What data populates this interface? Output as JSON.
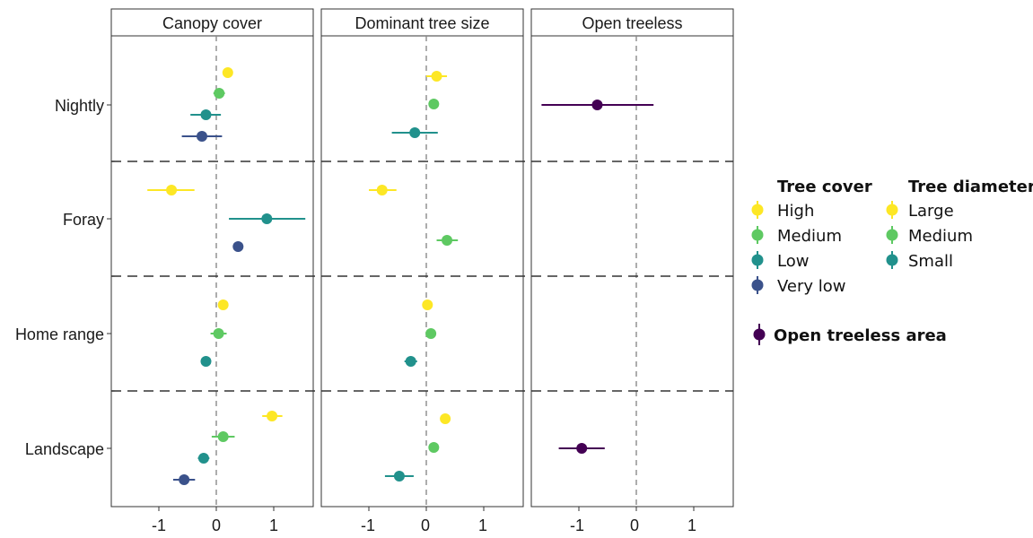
{
  "chart_data": {
    "type": "scatter",
    "panels": [
      "Canopy cover",
      "Dominant tree size",
      "Open treeless"
    ],
    "rows": [
      "Nightly",
      "Foray",
      "Home range",
      "Landscape"
    ],
    "x_ticks": [
      "-1",
      "0",
      "1"
    ],
    "xlim": [
      -1.8,
      1.7
    ],
    "reference_line_x": 0,
    "colors": {
      "high": "#fde725",
      "medium": "#5ec962",
      "low": "#21918c",
      "very_low": "#3b528b",
      "open": "#440154"
    },
    "legend": {
      "tree_cover_title": "Tree cover",
      "tree_cover_items": [
        "High",
        "Medium",
        "Low",
        "Very low"
      ],
      "tree_diameter_title": "Tree diameter",
      "tree_diameter_items": [
        "Large",
        "Medium",
        "Small"
      ],
      "open_label": "Open treeless area"
    },
    "series": [
      {
        "panel": "Canopy cover",
        "row": "Nightly",
        "level": "high",
        "estimate": 0.2,
        "lower": 0.15,
        "upper": 0.25
      },
      {
        "panel": "Canopy cover",
        "row": "Nightly",
        "level": "medium",
        "estimate": 0.05,
        "lower": -0.05,
        "upper": 0.15
      },
      {
        "panel": "Canopy cover",
        "row": "Nightly",
        "level": "low",
        "estimate": -0.18,
        "lower": -0.45,
        "upper": 0.08
      },
      {
        "panel": "Canopy cover",
        "row": "Nightly",
        "level": "very_low",
        "estimate": -0.25,
        "lower": -0.6,
        "upper": 0.1
      },
      {
        "panel": "Canopy cover",
        "row": "Foray",
        "level": "high",
        "estimate": -0.78,
        "lower": -1.2,
        "upper": -0.38
      },
      {
        "panel": "Canopy cover",
        "row": "Foray",
        "level": "low",
        "estimate": 0.88,
        "lower": 0.22,
        "upper": 1.55
      },
      {
        "panel": "Canopy cover",
        "row": "Foray",
        "level": "very_low",
        "estimate": 0.38,
        "lower": 0.34,
        "upper": 0.42
      },
      {
        "panel": "Canopy cover",
        "row": "Home range",
        "level": "high",
        "estimate": 0.12,
        "lower": 0.08,
        "upper": 0.16
      },
      {
        "panel": "Canopy cover",
        "row": "Home range",
        "level": "medium",
        "estimate": 0.04,
        "lower": -0.1,
        "upper": 0.18
      },
      {
        "panel": "Canopy cover",
        "row": "Home range",
        "level": "low",
        "estimate": -0.18,
        "lower": -0.22,
        "upper": -0.14
      },
      {
        "panel": "Canopy cover",
        "row": "Landscape",
        "level": "high",
        "estimate": 0.97,
        "lower": 0.8,
        "upper": 1.15
      },
      {
        "panel": "Canopy cover",
        "row": "Landscape",
        "level": "medium",
        "estimate": 0.12,
        "lower": -0.08,
        "upper": 0.32
      },
      {
        "panel": "Canopy cover",
        "row": "Landscape",
        "level": "low",
        "estimate": -0.22,
        "lower": -0.32,
        "upper": -0.12
      },
      {
        "panel": "Canopy cover",
        "row": "Landscape",
        "level": "very_low",
        "estimate": -0.56,
        "lower": -0.75,
        "upper": -0.37
      },
      {
        "panel": "Dominant tree size",
        "row": "Nightly",
        "level": "high",
        "estimate": 0.18,
        "lower": 0.0,
        "upper": 0.36
      },
      {
        "panel": "Dominant tree size",
        "row": "Nightly",
        "level": "medium",
        "estimate": 0.13,
        "lower": 0.05,
        "upper": 0.21
      },
      {
        "panel": "Dominant tree size",
        "row": "Nightly",
        "level": "low",
        "estimate": -0.2,
        "lower": -0.6,
        "upper": 0.2
      },
      {
        "panel": "Dominant tree size",
        "row": "Foray",
        "level": "high",
        "estimate": -0.77,
        "lower": -1.0,
        "upper": -0.52
      },
      {
        "panel": "Dominant tree size",
        "row": "Foray",
        "level": "medium",
        "estimate": 0.36,
        "lower": 0.18,
        "upper": 0.55
      },
      {
        "panel": "Dominant tree size",
        "row": "Home range",
        "level": "high",
        "estimate": 0.02,
        "lower": -0.02,
        "upper": 0.06
      },
      {
        "panel": "Dominant tree size",
        "row": "Home range",
        "level": "medium",
        "estimate": 0.08,
        "lower": 0.04,
        "upper": 0.12
      },
      {
        "panel": "Dominant tree size",
        "row": "Home range",
        "level": "low",
        "estimate": -0.27,
        "lower": -0.38,
        "upper": -0.16
      },
      {
        "panel": "Dominant tree size",
        "row": "Landscape",
        "level": "high",
        "estimate": 0.33,
        "lower": 0.29,
        "upper": 0.37
      },
      {
        "panel": "Dominant tree size",
        "row": "Landscape",
        "level": "medium",
        "estimate": 0.13,
        "lower": 0.09,
        "upper": 0.17
      },
      {
        "panel": "Dominant tree size",
        "row": "Landscape",
        "level": "low",
        "estimate": -0.47,
        "lower": -0.72,
        "upper": -0.22
      },
      {
        "panel": "Open treeless",
        "row": "Nightly",
        "level": "open",
        "estimate": -0.68,
        "lower": -1.65,
        "upper": 0.3
      },
      {
        "panel": "Open treeless",
        "row": "Landscape",
        "level": "open",
        "estimate": -0.95,
        "lower": -1.35,
        "upper": -0.55
      }
    ]
  }
}
